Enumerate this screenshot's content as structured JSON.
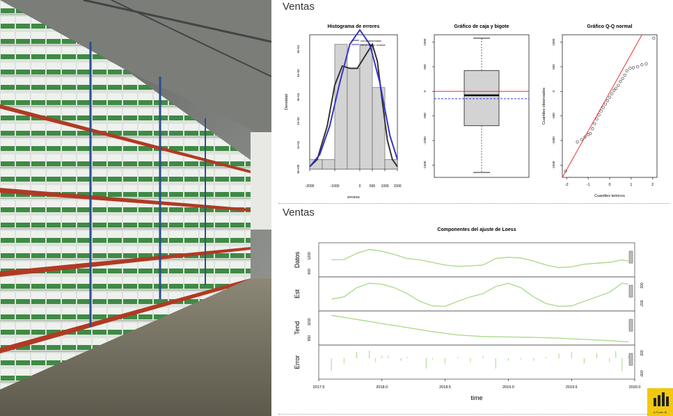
{
  "top_section_title": "Ventas",
  "bottom_section_title": "Ventas",
  "logo_caption": "el Poder BI",
  "colors": {
    "hist_bar": "#d3d3d3",
    "density_obs": "#333333",
    "density_normal": "#3333cc",
    "box_fill": "#d3d3d3",
    "ref_line_red": "#ee3333",
    "mean_line_blue": "#3333ee",
    "qq_line": "#ee3333",
    "loess_line": "#a6d985",
    "logo_bg": "#f2c811"
  },
  "chart_data": [
    {
      "type": "bar",
      "title": "Histograma de errores",
      "xlabel": "errores",
      "ylabel": "Densidad",
      "x_ticks": [
        "-2000",
        "-1000",
        "0",
        "500",
        "1000",
        "1500"
      ],
      "y_ticks": [
        "0e+00",
        "1e-04",
        "2e-04",
        "3e-04",
        "4e-04",
        "5e-04"
      ],
      "legend": [
        "curva observada",
        "curva aprox. normal"
      ],
      "bins": [
        [
          -2000,
          -1500
        ],
        [
          -1500,
          -1000
        ],
        [
          -1000,
          -500
        ],
        [
          -500,
          0
        ],
        [
          0,
          500
        ],
        [
          500,
          1000
        ],
        [
          1000,
          1500
        ]
      ],
      "values": [
        4e-05,
        4e-05,
        0.00052,
        0.00042,
        0.00052,
        0.00034,
        4e-05
      ],
      "xlim": [
        -2000,
        1500
      ],
      "ylim": [
        0,
        0.00056
      ],
      "density_observed": [
        [
          -2000,
          1e-05
        ],
        [
          -1700,
          4e-05
        ],
        [
          -1300,
          0.00018
        ],
        [
          -1000,
          0.00035
        ],
        [
          -700,
          0.00043
        ],
        [
          -400,
          0.00042
        ],
        [
          -100,
          0.00042
        ],
        [
          200,
          0.00047
        ],
        [
          500,
          0.00052
        ],
        [
          700,
          0.00045
        ],
        [
          900,
          0.00028
        ],
        [
          1100,
          0.00012
        ],
        [
          1300,
          4e-05
        ],
        [
          1500,
          1e-05
        ]
      ],
      "density_normal": [
        [
          -2000,
          1e-05
        ],
        [
          -1600,
          6e-05
        ],
        [
          -1200,
          0.00018
        ],
        [
          -800,
          0.00036
        ],
        [
          -400,
          0.00052
        ],
        [
          0,
          0.00058
        ],
        [
          400,
          0.00052
        ],
        [
          800,
          0.00036
        ],
        [
          1200,
          0.00014
        ],
        [
          1500,
          4e-05
        ]
      ]
    },
    {
      "type": "box",
      "title": "Gráfico de caja y bigote",
      "y_ticks": [
        "1000",
        "500",
        "0",
        "-500",
        "-1000",
        "-1500"
      ],
      "ylim": [
        -1750,
        1150
      ],
      "whisker_low": -1650,
      "q1": -700,
      "median": -80,
      "q3": 420,
      "whisker_high": 1080,
      "ref_line": 0,
      "mean_line": -150
    },
    {
      "type": "scatter",
      "title": "Gráfico Q-Q normal",
      "xlabel": "Cuantiles teóricos",
      "ylabel": "Cuantiles observados",
      "x_ticks": [
        "-2",
        "-1",
        "0",
        "1",
        "2"
      ],
      "y_ticks": [
        "1000",
        "500",
        "0",
        "-500",
        "-1000",
        "-1500"
      ],
      "xlim": [
        -2.2,
        2.2
      ],
      "ylim": [
        -1750,
        1150
      ],
      "points": [
        [
          -2.05,
          -1620
        ],
        [
          -1.5,
          -1030
        ],
        [
          -1.3,
          -980
        ],
        [
          -1.15,
          -930
        ],
        [
          -1.0,
          -880
        ],
        [
          -0.9,
          -860
        ],
        [
          -0.8,
          -760
        ],
        [
          -0.7,
          -660
        ],
        [
          -0.6,
          -560
        ],
        [
          -0.5,
          -480
        ],
        [
          -0.4,
          -400
        ],
        [
          -0.3,
          -330
        ],
        [
          -0.2,
          -260
        ],
        [
          -0.1,
          -190
        ],
        [
          0.0,
          -120
        ],
        [
          0.1,
          -50
        ],
        [
          0.2,
          20
        ],
        [
          0.3,
          60
        ],
        [
          0.4,
          120
        ],
        [
          0.5,
          200
        ],
        [
          0.6,
          260
        ],
        [
          0.7,
          330
        ],
        [
          0.8,
          420
        ],
        [
          0.95,
          470
        ],
        [
          1.1,
          480
        ],
        [
          1.3,
          500
        ],
        [
          1.5,
          540
        ],
        [
          1.7,
          560
        ],
        [
          2.05,
          1080
        ]
      ],
      "line": [
        [
          -2.2,
          -1750
        ],
        [
          1.5,
          1150
        ]
      ]
    },
    {
      "type": "line",
      "title": "Componentes del ajuste de Loess",
      "xlabel": "time",
      "x_ticks": [
        "2017.5",
        "2018.0",
        "2018.5",
        "2019.0",
        "2019.5",
        "2020.0"
      ],
      "xlim": [
        2017.5,
        2020.0
      ],
      "panels": [
        {
          "label": "Datos",
          "ticks": [
            "600",
            "1200"
          ],
          "tick_side": "left",
          "ylim": [
            500,
            1600
          ],
          "values": [
            [
              2017.6,
              1050
            ],
            [
              2017.7,
              1060
            ],
            [
              2017.8,
              1300
            ],
            [
              2017.9,
              1450
            ],
            [
              2018.0,
              1380
            ],
            [
              2018.1,
              1250
            ],
            [
              2018.2,
              1100
            ],
            [
              2018.3,
              1050
            ],
            [
              2018.4,
              950
            ],
            [
              2018.5,
              850
            ],
            [
              2018.6,
              800
            ],
            [
              2018.7,
              820
            ],
            [
              2018.8,
              850
            ],
            [
              2018.9,
              1100
            ],
            [
              2019.0,
              1150
            ],
            [
              2019.1,
              1120
            ],
            [
              2019.2,
              1000
            ],
            [
              2019.3,
              850
            ],
            [
              2019.4,
              750
            ],
            [
              2019.5,
              780
            ],
            [
              2019.6,
              880
            ],
            [
              2019.7,
              920
            ],
            [
              2019.8,
              950
            ],
            [
              2019.9,
              1050
            ],
            [
              2019.95,
              1000
            ]
          ]
        },
        {
          "label": "Est",
          "ticks": [
            "-200",
            "200"
          ],
          "tick_side": "right",
          "ylim": [
            -300,
            330
          ],
          "values": [
            [
              2017.6,
              -100
            ],
            [
              2017.7,
              -50
            ],
            [
              2017.8,
              150
            ],
            [
              2017.9,
              250
            ],
            [
              2018.0,
              230
            ],
            [
              2018.1,
              150
            ],
            [
              2018.2,
              20
            ],
            [
              2018.3,
              -150
            ],
            [
              2018.4,
              -250
            ],
            [
              2018.5,
              -260
            ],
            [
              2018.6,
              -150
            ],
            [
              2018.7,
              -50
            ],
            [
              2018.8,
              20
            ],
            [
              2018.9,
              180
            ],
            [
              2019.0,
              250
            ],
            [
              2019.1,
              150
            ],
            [
              2019.2,
              -50
            ],
            [
              2019.3,
              -200
            ],
            [
              2019.4,
              -260
            ],
            [
              2019.5,
              -250
            ],
            [
              2019.6,
              -150
            ],
            [
              2019.7,
              -50
            ],
            [
              2019.8,
              50
            ],
            [
              2019.9,
              250
            ],
            [
              2019.95,
              230
            ]
          ]
        },
        {
          "label": "Tend",
          "ticks": [
            "950",
            "1150"
          ],
          "tick_side": "left",
          "ylim": [
            900,
            1250
          ],
          "values": [
            [
              2017.6,
              1230
            ],
            [
              2017.8,
              1180
            ],
            [
              2018.0,
              1130
            ],
            [
              2018.2,
              1080
            ],
            [
              2018.4,
              1030
            ],
            [
              2018.6,
              990
            ],
            [
              2018.8,
              970
            ],
            [
              2019.0,
              965
            ],
            [
              2019.2,
              960
            ],
            [
              2019.4,
              950
            ],
            [
              2019.6,
              935
            ],
            [
              2019.8,
              920
            ],
            [
              2019.95,
              905
            ]
          ]
        },
        {
          "label": "Error",
          "ticks": [
            "-600",
            "200"
          ],
          "tick_side": "right",
          "ylim": [
            -700,
            400
          ],
          "style": "spikes",
          "values": [
            [
              2017.6,
              -500
            ],
            [
              2017.7,
              -200
            ],
            [
              2017.8,
              250
            ],
            [
              2017.9,
              300
            ],
            [
              2017.95,
              -150
            ],
            [
              2018.0,
              100
            ],
            [
              2018.05,
              100
            ],
            [
              2018.15,
              -100
            ],
            [
              2018.2,
              50
            ],
            [
              2018.35,
              -400
            ],
            [
              2018.4,
              -50
            ],
            [
              2018.5,
              -200
            ],
            [
              2018.6,
              50
            ],
            [
              2018.7,
              -150
            ],
            [
              2018.8,
              80
            ],
            [
              2018.9,
              -400
            ],
            [
              2019.0,
              -100
            ],
            [
              2019.1,
              -50
            ],
            [
              2019.2,
              -100
            ],
            [
              2019.3,
              50
            ],
            [
              2019.4,
              180
            ],
            [
              2019.5,
              250
            ],
            [
              2019.6,
              -200
            ],
            [
              2019.7,
              200
            ],
            [
              2019.8,
              -150
            ],
            [
              2019.85,
              280
            ],
            [
              2019.9,
              -500
            ],
            [
              2019.95,
              100
            ]
          ]
        }
      ]
    }
  ]
}
